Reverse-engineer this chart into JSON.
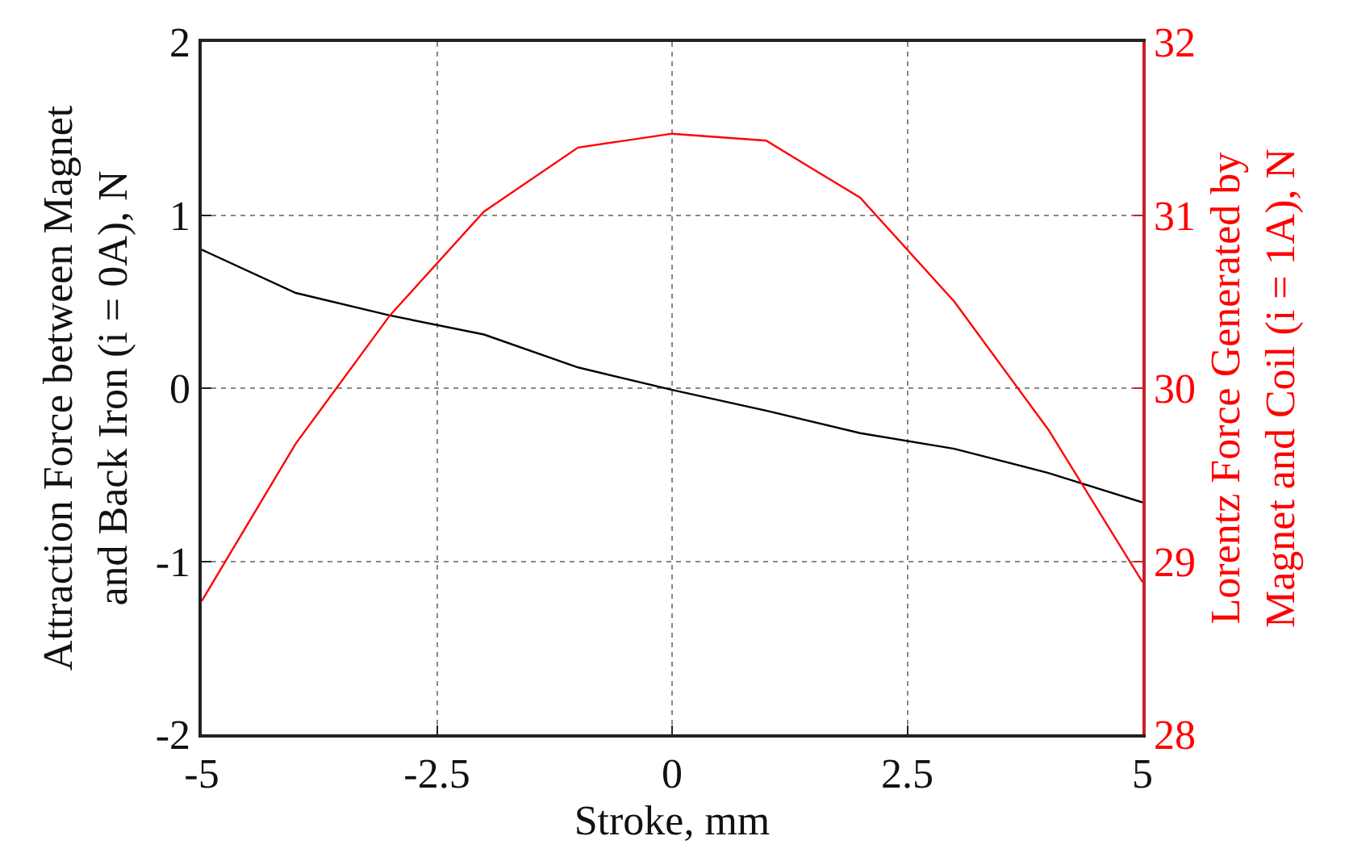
{
  "chart_data": {
    "type": "line",
    "xlabel": "Stroke, mm",
    "ylabel": "Attraction Force between Magnet\nand Back Iron (i = 0A), N",
    "y2label": "Lorentz Force Generated by\nMagnet and Coil (i = 1A), N",
    "x": [
      -5,
      -4,
      -3,
      -2,
      -1,
      0,
      1,
      2,
      3,
      4,
      5
    ],
    "series": [
      {
        "color": "#000000",
        "values": [
          0.8,
          0.55,
          0.42,
          0.31,
          0.12,
          -0.01,
          -0.13,
          -0.26,
          -0.35,
          -0.49,
          -0.66
        ]
      },
      {
        "color": "#ff0000",
        "axis": "y2",
        "values": [
          28.77,
          29.68,
          30.42,
          31.02,
          31.39,
          31.47,
          31.43,
          31.1,
          30.5,
          29.76,
          28.88
        ]
      }
    ],
    "xlim": [
      -5,
      5
    ],
    "xticks": [
      -5,
      -2.5,
      0,
      2.5,
      5
    ],
    "ylim": [
      -2,
      2
    ],
    "yticks": [
      -2,
      -1,
      0,
      1,
      2
    ],
    "y2lim": [
      28,
      32
    ],
    "y2ticks": [
      28,
      29,
      30,
      31,
      32
    ],
    "grid": true,
    "marker": "none",
    "line_style": "solid"
  }
}
